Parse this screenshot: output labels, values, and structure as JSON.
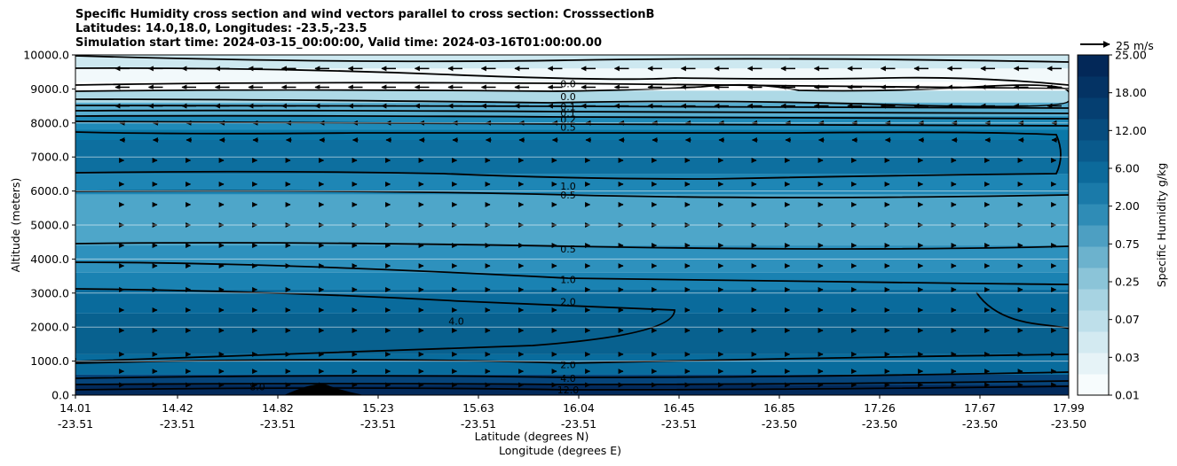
{
  "title": {
    "line1": "Specific Humidity cross section and wind vectors parallel to cross section: CrosssectionB",
    "line2": "Latitudes: 14.0,18.0, Longitudes: -23.5,-23.5",
    "line3": "Simulation start time: 2024-03-15_00:00:00, Valid time: 2024-03-16T01:00:00.00"
  },
  "chart_data": {
    "type": "heatmap",
    "ylabel": "Altitude (meters)",
    "xlabel_lat": "Latitude (degrees N)",
    "xlabel_lon": "Longitude (degrees E)",
    "ylim": [
      0,
      10000
    ],
    "y_ticks": [
      "0.0",
      "1000.0",
      "2000.0",
      "3000.0",
      "4000.0",
      "5000.0",
      "6000.0",
      "7000.0",
      "8000.0",
      "9000.0",
      "10000.0"
    ],
    "x_ticks": [
      {
        "lat": "14.01",
        "lon": "-23.51"
      },
      {
        "lat": "14.42",
        "lon": "-23.51"
      },
      {
        "lat": "14.82",
        "lon": "-23.51"
      },
      {
        "lat": "15.23",
        "lon": "-23.51"
      },
      {
        "lat": "15.63",
        "lon": "-23.51"
      },
      {
        "lat": "16.04",
        "lon": "-23.51"
      },
      {
        "lat": "16.45",
        "lon": "-23.51"
      },
      {
        "lat": "16.85",
        "lon": "-23.50"
      },
      {
        "lat": "17.26",
        "lon": "-23.50"
      },
      {
        "lat": "17.67",
        "lon": "-23.50"
      },
      {
        "lat": "17.99",
        "lon": "-23.50"
      }
    ],
    "colorbar": {
      "label": "Specific Humidity g/kg",
      "levels": [
        "0.01",
        "0.03",
        "0.07",
        "0.25",
        "0.75",
        "2.00",
        "6.00",
        "12.00",
        "18.00",
        "25.00"
      ]
    },
    "quiver_key": "25 m/s",
    "contour_labels": [
      {
        "text": "0.0",
        "alt": 9150
      },
      {
        "text": "0.0",
        "alt": 8780
      },
      {
        "text": "0.1",
        "alt": 8480
      },
      {
        "text": "0.1",
        "alt": 8300
      },
      {
        "text": "0.2",
        "alt": 8100
      },
      {
        "text": "0.5",
        "alt": 7880
      },
      {
        "text": "1.0",
        "alt": 6150
      },
      {
        "text": "0.5",
        "alt": 5880
      },
      {
        "text": "0.5",
        "alt": 4300
      },
      {
        "text": "1.0",
        "alt": 3400
      },
      {
        "text": "2.0",
        "alt": 2750
      },
      {
        "text": "4.0",
        "alt": 2180
      },
      {
        "text": "2.0",
        "alt": 900
      },
      {
        "text": "4.0",
        "alt": 500
      },
      {
        "text": "8.0",
        "alt": 250
      },
      {
        "text": "12.0",
        "alt": 150
      }
    ],
    "humidity_layers": [
      {
        "top": 10000,
        "value": "0.03",
        "color": "#cde8f0"
      },
      {
        "top": 9600,
        "value": "0.01",
        "color": "#f2f9fb"
      },
      {
        "top": 9200,
        "value": "0.01",
        "color": "#ffffff"
      },
      {
        "top": 8950,
        "value": "0.07",
        "color": "#aed9e6"
      },
      {
        "top": 8600,
        "value": "0.25",
        "color": "#5aaed0"
      },
      {
        "top": 8200,
        "value": "0.75",
        "color": "#1f8ab8"
      },
      {
        "top": 7800,
        "value": "1.00",
        "color": "#0a78a8"
      },
      {
        "top": 7500,
        "value": "2.00",
        "color": "#0d6f9f"
      },
      {
        "top": 6500,
        "value": "1.00",
        "color": "#1e86b5"
      },
      {
        "top": 5900,
        "value": "0.50",
        "color": "#4ea6c9"
      },
      {
        "top": 4400,
        "value": "1.00",
        "color": "#2e91bd"
      },
      {
        "top": 3600,
        "value": "2.00",
        "color": "#1a82b2"
      },
      {
        "top": 3100,
        "value": "4.00",
        "color": "#0a6b9c"
      },
      {
        "top": 2400,
        "value": "4.00",
        "color": "#08618f"
      },
      {
        "top": 1200,
        "value": "6.00",
        "color": "#096c9d"
      },
      {
        "top": 600,
        "value": "8.00",
        "color": "#06447a"
      },
      {
        "top": 300,
        "value": "12.00",
        "color": "#022a5c"
      }
    ]
  }
}
